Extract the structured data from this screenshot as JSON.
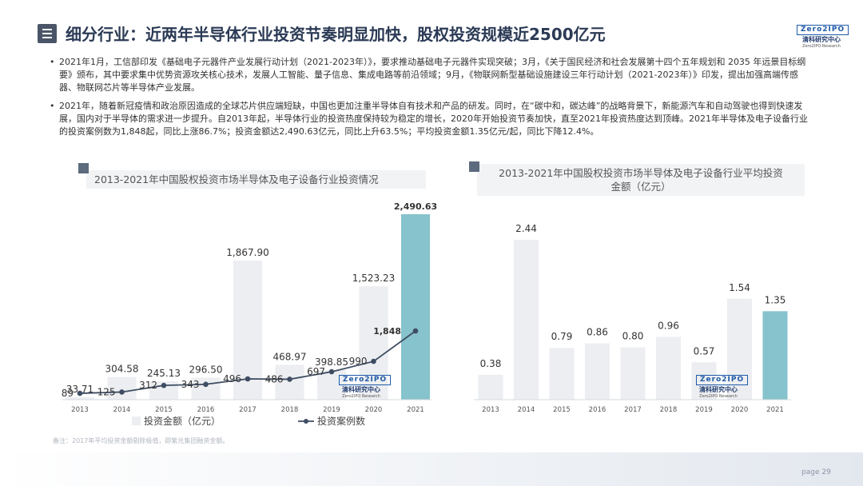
{
  "header": {
    "title": "细分行业：近两年半导体行业投资节奏明显加快，股权投资规模近2500亿元",
    "logo_mark": "Zero2IPO",
    "logo_cn": "清科研究中心",
    "logo_en": "Zero2IPO Research"
  },
  "bullets": [
    "2021年1月，工信部印发《基础电子元器件产业发展行动计划（2021-2023年）》，要求推动基础电子元器件实现突破；3月，《关于国民经济和社会发展第十四个五年规划和 2035 年远景目标纲要》颁布，其中要求集中优势资源攻关核心技术，发展人工智能、量子信息、集成电路等前沿领域；9月，《物联网新型基础设施建设三年行动计划（2021-2023年）》印发，提出加强高端传感器、物联网芯片等半导体产业发展。",
    "2021年，随着新冠疫情和政治原因造成的全球芯片供应端短缺，中国也更加注重半导体自有技术和产品的研发。同时，在“碳中和，碳达峰”的战略背景下，新能源汽车和自动驾驶也得到快速发展，国内对于半导体的需求进一步提升。自2013年起，半导体行业的投资热度保持较为稳定的增长，2020年开始投资节奏加快，直至2021年投资热度达到顶峰。2021年半导体及电子设备行业的投资案例数为1,848起，同比上涨86.7%；投资金额达2,490.63亿元，同比上升63.5%；平均投资金额1.35亿元/起，同比下降12.4%。"
  ],
  "bullet_symbol": "•",
  "chart_data": [
    {
      "type": "bar",
      "title": "2013-2021年中国股权投资市场半导体及电子设备行业投资情况",
      "categories": [
        "2013",
        "2014",
        "2015",
        "2016",
        "2017",
        "2018",
        "2019",
        "2020",
        "2021"
      ],
      "series": [
        {
          "name": "投资金额（亿元）",
          "type": "bar",
          "values": [
            33.71,
            304.58,
            245.13,
            296.5,
            1867.9,
            468.97,
            398.85,
            1523.23,
            2490.63
          ],
          "labels": [
            "33.71",
            "304.58",
            "245.13",
            "296.50",
            "1,867.90",
            "468.97",
            "398.85",
            "1,523.23",
            "2,490.63"
          ]
        },
        {
          "name": "投资案例数",
          "type": "line",
          "values": [
            89,
            125,
            312,
            343,
            496,
            486,
            697,
            990,
            1848
          ],
          "labels": [
            "89",
            "125",
            "312",
            "343",
            "496",
            "486",
            "697",
            "990",
            "1,848"
          ]
        }
      ],
      "legend_position": "bottom",
      "grid": false,
      "colors": {
        "bar": "#eceef1",
        "bar_highlight": "#86c3cc",
        "line": "#3f4d63"
      }
    },
    {
      "type": "bar",
      "title": "2013-2021年中国股权投资市场半导体及电子设备行业平均投资金额（亿元）",
      "categories": [
        "2013",
        "2014",
        "2015",
        "2016",
        "2017",
        "2018",
        "2019",
        "2020",
        "2021"
      ],
      "values": [
        0.38,
        2.44,
        0.79,
        0.86,
        0.8,
        0.96,
        0.57,
        1.54,
        1.35
      ],
      "labels": [
        "0.38",
        "2.44",
        "0.79",
        "0.86",
        "0.80",
        "0.96",
        "0.57",
        "1.54",
        "1.35"
      ],
      "grid": false,
      "colors": {
        "bar": "#eceef1",
        "bar_highlight": "#86c3cc"
      }
    }
  ],
  "chart1_title_line": "2013-2021年中国股权投资市场半导体及电子设备行业投资情况",
  "chart2_title_line1": "2013-2021年中国股权投资市场半导体及电子设备行业平均投资",
  "chart2_title_line2": "金额（亿元）",
  "footnote": "备注：2017年平均投资金额剔除极值，即紫光集团融资金额。",
  "page_label": "page",
  "page_number": "29"
}
